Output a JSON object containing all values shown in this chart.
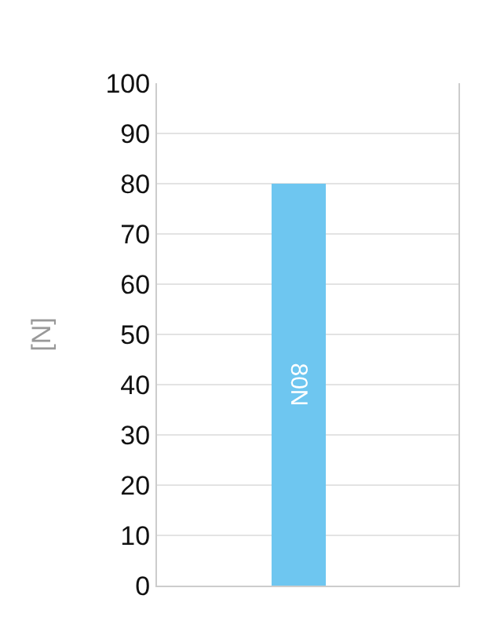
{
  "chart_data": {
    "type": "bar",
    "ylabel": "[N]",
    "categories": [
      null
    ],
    "values": [
      80
    ],
    "value_labels": [
      "80N"
    ],
    "color": "#6ec6f0",
    "ylim": [
      0,
      100
    ],
    "yticks": [
      0,
      10,
      20,
      30,
      40,
      50,
      60,
      70,
      80,
      90,
      100
    ],
    "grid": "y",
    "legend": false
  }
}
